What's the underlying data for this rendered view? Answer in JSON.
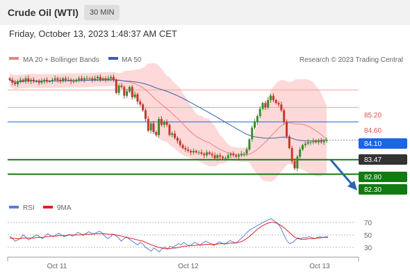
{
  "header": {
    "title": "Crude Oil (WTI)",
    "timeframe": "30 MIN",
    "datetime": "Friday, October 13, 2023 1:48:37 AM CET"
  },
  "legend": {
    "ma20": "MA 20 + Bollinger Bands",
    "ma50": "MA 50",
    "copyright": "Research © 2023 Trading Central",
    "rsi": "RSI",
    "rsi_ma": "9MA"
  },
  "colors": {
    "ma20": "#f08080",
    "ma50": "#3a5fb0",
    "band": "#fdd9d9",
    "candle_up": "#3a8a2e",
    "candle_down": "#c0392b",
    "support": "#127a12",
    "pivot": "#1a66e6",
    "current": "#333333",
    "resistance": "#f4a0a0",
    "arrow": "#2866b0"
  },
  "chart_data": [
    {
      "type": "candlestick",
      "title": "Crude Oil (WTI)",
      "timeframe": "30 MIN",
      "x_labels": [
        "Oct 11",
        "Oct 12",
        "Oct 13"
      ],
      "ylim": [
        81.5,
        86.0
      ],
      "last_price": 83.47,
      "closes": [
        85.55,
        85.45,
        85.4,
        85.5,
        85.55,
        85.5,
        85.6,
        85.5,
        85.55,
        85.5,
        85.5,
        85.45,
        85.5,
        85.55,
        85.5,
        85.5,
        85.55,
        85.6,
        85.55,
        85.5,
        85.6,
        85.55,
        85.55,
        85.5,
        85.5,
        85.55,
        85.6,
        85.55,
        85.6,
        85.6,
        85.6,
        85.55,
        85.6,
        85.65,
        85.55,
        85.6,
        85.55,
        85.6,
        85.65,
        85.55,
        85.1,
        85.35,
        85.3,
        85.0,
        85.15,
        85.3,
        84.95,
        85.05,
        84.8,
        84.7,
        84.5,
        84.2,
        83.8,
        84.05,
        83.75,
        83.65,
        84.2,
        84.0,
        84.1,
        84.0,
        83.65,
        83.7,
        83.55,
        83.45,
        83.3,
        83.2,
        83.15,
        83.1,
        83.05,
        83.1,
        83.05,
        83.05,
        83.0,
        82.95,
        83.05,
        83.0,
        82.95,
        82.85,
        82.95,
        82.9,
        82.85,
        82.85,
        82.95,
        83.0,
        82.95,
        82.9,
        82.95,
        83.0,
        83.0,
        83.15,
        83.5,
        83.9,
        84.1,
        84.3,
        84.55,
        84.75,
        84.6,
        84.85,
        85.0,
        84.85,
        84.75,
        84.7,
        84.5,
        84.1,
        83.6,
        83.2,
        82.75,
        82.5,
        82.9,
        83.15,
        83.3,
        83.35,
        83.4,
        83.4,
        83.45,
        83.4,
        83.45,
        83.4,
        83.45,
        83.47
      ]
    },
    {
      "type": "line",
      "title": "RSI",
      "yticks": [
        30,
        50,
        70
      ],
      "ylim": [
        20,
        80
      ],
      "series": [
        {
          "name": "RSI",
          "values": [
            48,
            44,
            40,
            42,
            45,
            50,
            46,
            42,
            45,
            48,
            50,
            47,
            44,
            48,
            52,
            49,
            47,
            50,
            53,
            50,
            47,
            49,
            51,
            48,
            50,
            54,
            52,
            49,
            52,
            55,
            53,
            51,
            54,
            56,
            53,
            48,
            44,
            47,
            51,
            49,
            45,
            40,
            44,
            47,
            43,
            40,
            37,
            34,
            38,
            35,
            30,
            27,
            24,
            29,
            26,
            23,
            28,
            31,
            27,
            32,
            30,
            33,
            36,
            34,
            38,
            35,
            32,
            35,
            38,
            36,
            33,
            37,
            40,
            38,
            36,
            33,
            36,
            39,
            37,
            35,
            38,
            41,
            39,
            37,
            40,
            44,
            48,
            53,
            57,
            60,
            62,
            65,
            67,
            70,
            72,
            74,
            76,
            73,
            70,
            66,
            58,
            48,
            40,
            36,
            38,
            42,
            45,
            44,
            46,
            45,
            47,
            46,
            44,
            46,
            47,
            46,
            47,
            47
          ]
        },
        {
          "name": "9MA",
          "values": [
            45,
            45,
            44,
            44,
            44,
            45,
            45,
            45,
            45,
            45,
            46,
            46,
            46,
            47,
            47,
            48,
            48,
            48,
            49,
            49,
            49,
            49,
            50,
            50,
            50,
            50,
            50,
            51,
            51,
            51,
            51,
            52,
            52,
            52,
            52,
            52,
            51,
            51,
            51,
            50,
            49,
            48,
            47,
            46,
            45,
            44,
            43,
            42,
            41,
            40,
            38,
            36,
            34,
            33,
            31,
            30,
            29,
            28,
            28,
            28,
            29,
            29,
            30,
            31,
            32,
            32,
            33,
            33,
            33,
            34,
            34,
            34,
            35,
            35,
            35,
            35,
            35,
            36,
            36,
            36,
            36,
            37,
            37,
            37,
            38,
            39,
            41,
            44,
            47,
            51,
            55,
            59,
            62,
            65,
            67,
            69,
            70,
            70,
            69,
            67,
            64,
            61,
            57,
            53,
            49,
            46,
            44,
            43,
            43,
            43,
            44,
            44,
            44,
            45,
            45,
            46,
            46,
            46
          ]
        }
      ]
    }
  ],
  "levels": {
    "resistance_1": "85.20",
    "resistance_2": "84.60",
    "pivot": "84.10",
    "current": "83.47",
    "support_1": "82.80",
    "support_2": "82.30"
  }
}
